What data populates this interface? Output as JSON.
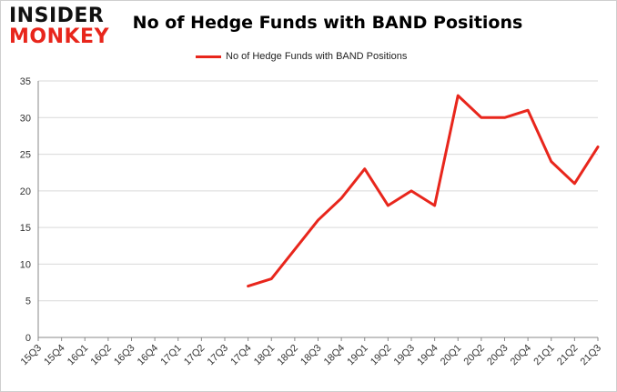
{
  "logo": {
    "line1": "INSIDER",
    "line2": "MONKEY"
  },
  "chart_data": {
    "type": "line",
    "title": "No of Hedge Funds with BAND Positions",
    "xlabel": "",
    "ylabel": "",
    "categories": [
      "15Q3",
      "15Q4",
      "16Q1",
      "16Q2",
      "16Q3",
      "16Q4",
      "17Q1",
      "17Q2",
      "17Q3",
      "17Q4",
      "18Q1",
      "18Q2",
      "18Q3",
      "18Q4",
      "19Q1",
      "19Q2",
      "19Q3",
      "19Q4",
      "20Q1",
      "20Q2",
      "20Q3",
      "20Q4",
      "21Q1",
      "21Q2",
      "21Q3"
    ],
    "series": [
      {
        "name": "No of Hedge Funds with BAND Positions",
        "values": [
          null,
          null,
          null,
          null,
          null,
          null,
          null,
          null,
          null,
          7,
          8,
          12,
          16,
          19,
          23,
          18,
          20,
          18,
          33,
          30,
          30,
          31,
          24,
          21,
          26
        ]
      }
    ],
    "ylim": [
      0,
      35
    ],
    "yticks": [
      0,
      5,
      10,
      15,
      20,
      25,
      30,
      35
    ],
    "grid": "horizontal",
    "legend": "top-center",
    "colors": {
      "line": "#e8261c",
      "grid": "#d9d9d9",
      "axis": "#888888"
    }
  }
}
